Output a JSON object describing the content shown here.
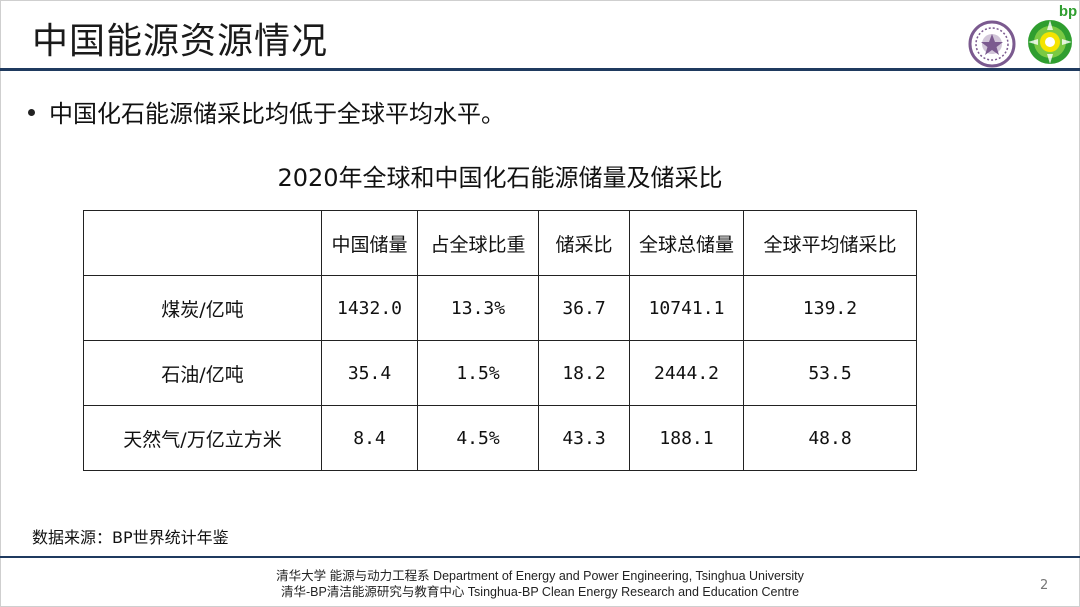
{
  "slide": {
    "title": "中国能源资源情况",
    "bullet": "中国化石能源储采比均低于全球平均水平。",
    "table_title": "2020年全球和中国化石能源储量及储采比",
    "source": "数据来源：BP世界统计年鉴",
    "page_number": "2"
  },
  "logos": {
    "bp_text": "bp"
  },
  "table": {
    "headers": [
      "",
      "中国储量",
      "占全球比重",
      "储采比",
      "全球总储量",
      "全球平均储采比"
    ],
    "rows": [
      [
        "煤炭/亿吨",
        "1432.0",
        "13.3%",
        "36.7",
        "10741.1",
        "139.2"
      ],
      [
        "石油/亿吨",
        "35.4",
        "1.5%",
        "18.2",
        "2444.2",
        "53.5"
      ],
      [
        "天然气/万亿立方米",
        "8.4",
        "4.5%",
        "43.3",
        "188.1",
        "48.8"
      ]
    ]
  },
  "footer": {
    "line1": "清华大学 能源与动力工程系 Department of Energy and Power Engineering, Tsinghua University",
    "line2": "清华-BP清洁能源研究与教育中心 Tsinghua-BP Clean Energy Research and Education Centre"
  },
  "colors": {
    "rule": "#1f3a5f",
    "bp_green": "#2f9e2f",
    "bp_yellow": "#f5e400",
    "tsinghua_purple": "#7b5a8f"
  }
}
